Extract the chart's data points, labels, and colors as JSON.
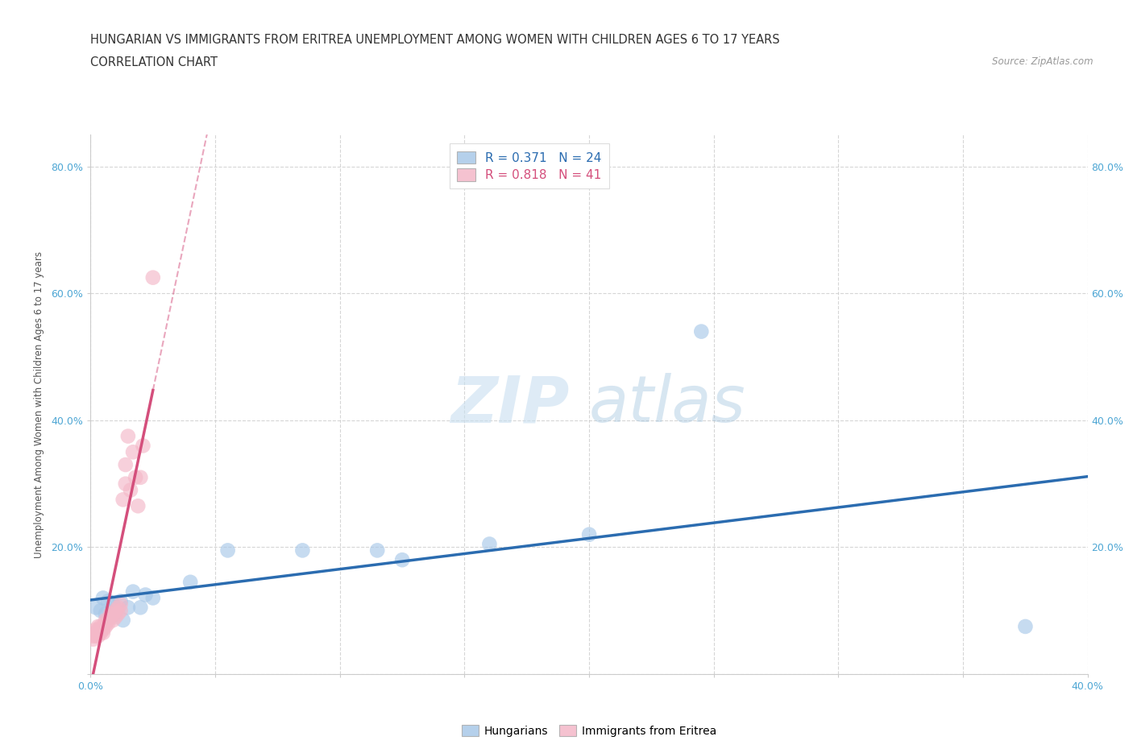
{
  "title_line1": "HUNGARIAN VS IMMIGRANTS FROM ERITREA UNEMPLOYMENT AMONG WOMEN WITH CHILDREN AGES 6 TO 17 YEARS",
  "title_line2": "CORRELATION CHART",
  "source": "Source: ZipAtlas.com",
  "ylabel": "Unemployment Among Women with Children Ages 6 to 17 years",
  "xlim": [
    0.0,
    0.4
  ],
  "ylim": [
    0.0,
    0.85
  ],
  "xtick_positions": [
    0.0,
    0.05,
    0.1,
    0.15,
    0.2,
    0.25,
    0.3,
    0.35,
    0.4
  ],
  "xtick_labels": [
    "0.0%",
    "",
    "",
    "",
    "",
    "",
    "",
    "",
    "40.0%"
  ],
  "ytick_positions": [
    0.0,
    0.2,
    0.4,
    0.6,
    0.8
  ],
  "ytick_labels": [
    "",
    "20.0%",
    "40.0%",
    "60.0%",
    "80.0%"
  ],
  "blue_color": "#a8c8e8",
  "pink_color": "#f4b8c8",
  "blue_line_color": "#2b6cb0",
  "pink_line_color": "#d44f7c",
  "legend_blue_r": "R = 0.371",
  "legend_blue_n": "N = 24",
  "legend_pink_r": "R = 0.818",
  "legend_pink_n": "N = 41",
  "watermark_zip": "ZIP",
  "watermark_atlas": "atlas",
  "background_color": "#ffffff",
  "grid_color": "#cccccc",
  "title_color": "#333333",
  "tick_color": "#4da6d4",
  "ylabel_color": "#555555",
  "source_color": "#999999",
  "blue_dots_x": [
    0.002,
    0.004,
    0.005,
    0.006,
    0.007,
    0.008,
    0.009,
    0.01,
    0.012,
    0.013,
    0.015,
    0.017,
    0.02,
    0.022,
    0.025,
    0.04,
    0.055,
    0.085,
    0.115,
    0.125,
    0.16,
    0.2,
    0.245,
    0.375
  ],
  "blue_dots_y": [
    0.105,
    0.1,
    0.12,
    0.095,
    0.115,
    0.09,
    0.11,
    0.1,
    0.115,
    0.085,
    0.105,
    0.13,
    0.105,
    0.125,
    0.12,
    0.145,
    0.195,
    0.195,
    0.195,
    0.18,
    0.205,
    0.22,
    0.54,
    0.075
  ],
  "pink_dots_x": [
    0.001,
    0.001,
    0.002,
    0.002,
    0.002,
    0.003,
    0.003,
    0.003,
    0.003,
    0.004,
    0.004,
    0.004,
    0.005,
    0.005,
    0.005,
    0.006,
    0.006,
    0.006,
    0.007,
    0.007,
    0.008,
    0.008,
    0.009,
    0.009,
    0.01,
    0.01,
    0.011,
    0.011,
    0.012,
    0.012,
    0.013,
    0.014,
    0.014,
    0.015,
    0.016,
    0.017,
    0.018,
    0.019,
    0.02,
    0.021,
    0.025
  ],
  "pink_dots_y": [
    0.055,
    0.06,
    0.06,
    0.065,
    0.07,
    0.06,
    0.065,
    0.07,
    0.075,
    0.065,
    0.07,
    0.075,
    0.065,
    0.07,
    0.075,
    0.075,
    0.08,
    0.085,
    0.08,
    0.085,
    0.09,
    0.095,
    0.085,
    0.095,
    0.09,
    0.1,
    0.095,
    0.105,
    0.1,
    0.11,
    0.275,
    0.3,
    0.33,
    0.375,
    0.29,
    0.35,
    0.31,
    0.265,
    0.31,
    0.36,
    0.625
  ],
  "title_fontsize": 10.5,
  "subtitle_fontsize": 10.5,
  "axis_label_fontsize": 8.5,
  "tick_fontsize": 9,
  "legend_fontsize": 11
}
